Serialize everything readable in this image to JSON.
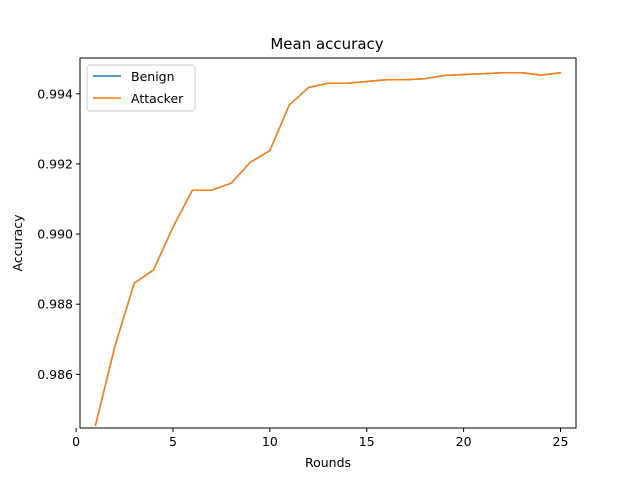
{
  "chart_data": {
    "type": "line",
    "title": "Mean accuracy",
    "xlabel": "Rounds",
    "ylabel": "Accuracy",
    "xlim": [
      0.2,
      25.8
    ],
    "ylim": [
      0.98447,
      0.99502
    ],
    "xticks": [
      0,
      5,
      10,
      15,
      20,
      25
    ],
    "yticks": [
      0.986,
      0.988,
      0.99,
      0.992,
      0.994
    ],
    "ytick_labels": [
      "0.986",
      "0.988",
      "0.990",
      "0.992",
      "0.994"
    ],
    "xtick_labels": [
      "0",
      "5",
      "10",
      "15",
      "20",
      "25"
    ],
    "legend_position": "top-left",
    "grid": false,
    "x": [
      1,
      2,
      3,
      4,
      5,
      6,
      7,
      8,
      9,
      10,
      11,
      12,
      13,
      14,
      15,
      16,
      17,
      18,
      19,
      20,
      21,
      22,
      23,
      24,
      25
    ],
    "series": [
      {
        "name": "Benign",
        "color": "#1f77b4",
        "values": [
          0.98455,
          0.9868,
          0.9886,
          0.98898,
          0.9902,
          0.99125,
          0.99125,
          0.99145,
          0.99205,
          0.99238,
          0.99368,
          0.99418,
          0.9943,
          0.9943,
          0.99435,
          0.9944,
          0.9944,
          0.99443,
          0.99452,
          0.99455,
          0.99457,
          0.9946,
          0.9946,
          0.99453,
          0.9946
        ]
      },
      {
        "name": "Attacker",
        "color": "#ff7f0e",
        "values": [
          0.98455,
          0.9868,
          0.9886,
          0.98898,
          0.9902,
          0.99125,
          0.99125,
          0.99145,
          0.99205,
          0.99238,
          0.99368,
          0.99418,
          0.9943,
          0.9943,
          0.99435,
          0.9944,
          0.9944,
          0.99443,
          0.99452,
          0.99455,
          0.99457,
          0.9946,
          0.9946,
          0.99453,
          0.9946
        ]
      }
    ]
  }
}
